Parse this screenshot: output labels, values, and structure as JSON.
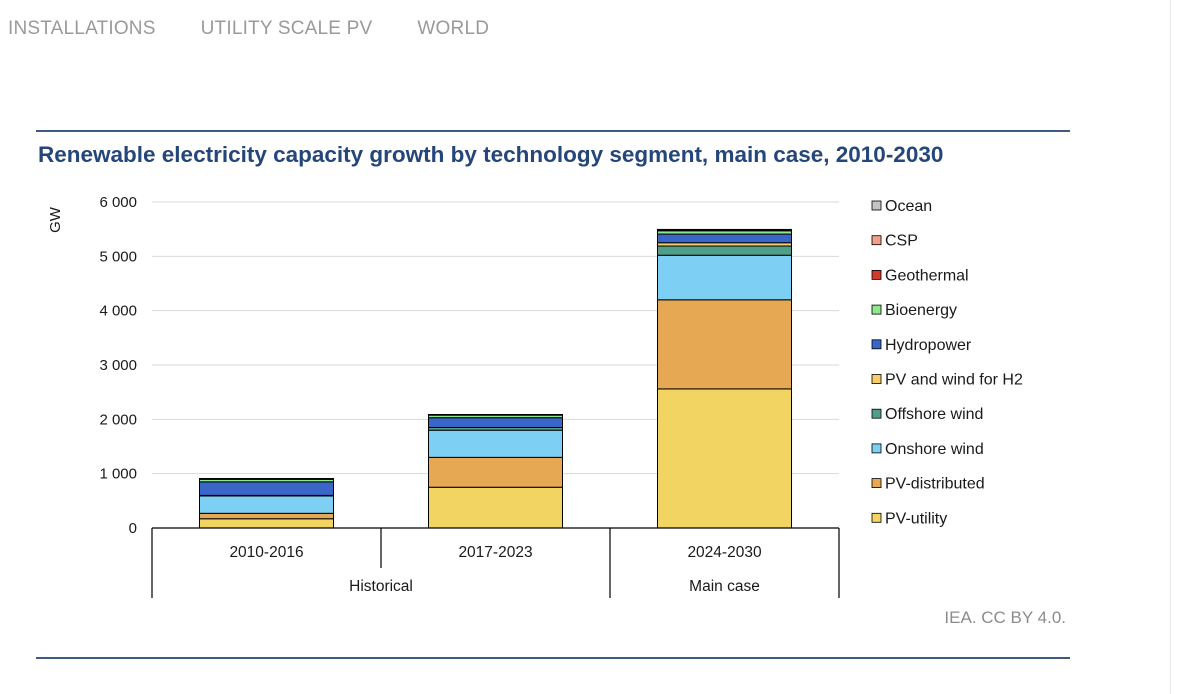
{
  "nav": {
    "items": [
      {
        "label": "INSTALLATIONS"
      },
      {
        "label": "UTILITY SCALE PV"
      },
      {
        "label": "WORLD"
      }
    ]
  },
  "figure": {
    "credit": "IEA. CC BY 4.0."
  },
  "chart_data": {
    "type": "bar",
    "stacked": true,
    "title": "Renewable electricity capacity growth by technology segment, main case, 2010-2030",
    "ylabel": "GW",
    "xlabel": "",
    "ylim": [
      0,
      6000
    ],
    "yticks": [
      0,
      1000,
      2000,
      3000,
      4000,
      5000,
      6000
    ],
    "ytick_labels": [
      "0",
      "1 000",
      "2 000",
      "3 000",
      "4 000",
      "5 000",
      "6 000"
    ],
    "grid": true,
    "legend_position": "right",
    "categories": [
      "2010-2016",
      "2017-2023",
      "2024-2030"
    ],
    "groups": [
      {
        "label": "Historical",
        "categories": [
          "2010-2016",
          "2017-2023"
        ]
      },
      {
        "label": "Main case",
        "categories": [
          "2024-2030"
        ]
      }
    ],
    "series": [
      {
        "name": "PV-utility",
        "color": "#f2d462",
        "values": [
          170,
          750,
          2560
        ]
      },
      {
        "name": "PV-distributed",
        "color": "#e7a853",
        "values": [
          100,
          550,
          1640
        ]
      },
      {
        "name": "Onshore wind",
        "color": "#7dd0f3",
        "values": [
          320,
          500,
          820
        ]
      },
      {
        "name": "Offshore wind",
        "color": "#4f9e8a",
        "values": [
          10,
          50,
          170
        ]
      },
      {
        "name": "PV and wind for H2",
        "color": "#f7cd6a",
        "values": [
          0,
          0,
          60
        ]
      },
      {
        "name": "Hydropower",
        "color": "#3a66c8",
        "values": [
          250,
          180,
          160
        ]
      },
      {
        "name": "Bioenergy",
        "color": "#8ee88c",
        "values": [
          50,
          50,
          60
        ]
      },
      {
        "name": "Geothermal",
        "color": "#cf3a2d",
        "values": [
          5,
          5,
          10
        ]
      },
      {
        "name": "CSP",
        "color": "#f0a088",
        "values": [
          3,
          3,
          10
        ]
      },
      {
        "name": "Ocean",
        "color": "#c4c4c4",
        "values": [
          1,
          1,
          5
        ]
      }
    ]
  }
}
